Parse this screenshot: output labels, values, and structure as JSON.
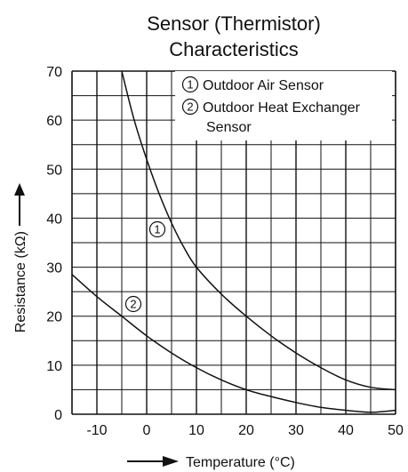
{
  "chart_data": {
    "type": "line",
    "title_line1": "Sensor (Thermistor)",
    "title_line2": "Characteristics",
    "xlabel": "Temperature (°C)",
    "ylabel": "Resistance (kΩ)",
    "xlim": [
      -15,
      50
    ],
    "ylim": [
      0,
      70
    ],
    "x_ticks": [
      "-10",
      "0",
      "10",
      "20",
      "30",
      "40",
      "50"
    ],
    "y_ticks": [
      "0",
      "10",
      "20",
      "30",
      "40",
      "50",
      "60",
      "70"
    ],
    "grid": true,
    "legend": {
      "items": [
        {
          "marker": "1",
          "text": "Outdoor Air Sensor"
        },
        {
          "marker": "2",
          "text": "Outdoor Heat Exchanger"
        },
        {
          "marker": "",
          "text": "Sensor"
        }
      ],
      "position": "top-right"
    },
    "series": [
      {
        "marker": "1",
        "x": [
          -5,
          -2.5,
          0,
          2.5,
          5,
          7.5,
          10,
          15,
          20,
          25,
          30,
          35,
          40,
          45,
          50
        ],
        "values": [
          70,
          60,
          52,
          45,
          39,
          34,
          30,
          24.5,
          20,
          16,
          12.5,
          9.5,
          7,
          5.5,
          5
        ]
      },
      {
        "marker": "2",
        "x": [
          -15,
          -10,
          -5,
          0,
          5,
          10,
          15,
          20,
          25,
          30,
          35,
          40,
          45,
          50
        ],
        "values": [
          28.5,
          24,
          20,
          16,
          12.5,
          9.5,
          7,
          5,
          3.6,
          2.4,
          1.4,
          0.8,
          0.4,
          0.8
        ]
      }
    ]
  }
}
